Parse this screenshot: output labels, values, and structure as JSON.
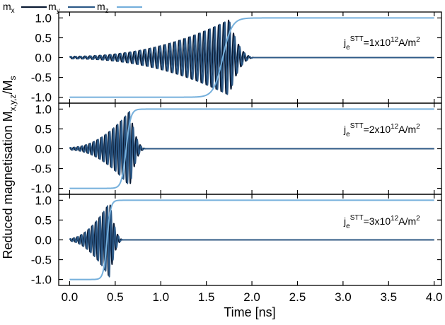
{
  "chart_data": {
    "type": "line",
    "xlabel": "Time [ns]",
    "ylabel_main": "Reduced magnetisation M",
    "ylabel_sub": "x,y,z",
    "ylabel_tail": "/M",
    "ylabel_tail_sub": "s",
    "xlim": [
      -0.12,
      4.08
    ],
    "ylim": [
      -1.15,
      1.15
    ],
    "x_ticks": [
      0.0,
      0.5,
      1.0,
      1.5,
      2.0,
      2.5,
      3.0,
      3.5,
      4.0
    ],
    "x_tick_labels": [
      "0.0",
      "0.5",
      "1.0",
      "1.5",
      "2.0",
      "2.5",
      "3.0",
      "3.5",
      "4.0"
    ],
    "y_ticks": [
      -1.0,
      -0.5,
      0.0,
      0.5,
      1.0
    ],
    "y_tick_labels": [
      "-1.0",
      "-0.5",
      "0.0",
      "0.5",
      "1.0"
    ],
    "legend": {
      "position": "top-left-outside",
      "entries": [
        {
          "base": "m",
          "sub": "x",
          "color": "#0a1a33"
        },
        {
          "base": "m",
          "sub": "y",
          "color": "#2d5a88"
        },
        {
          "base": "m",
          "sub": "z",
          "color": "#76b0dc"
        }
      ]
    },
    "panels": [
      {
        "annotation": {
          "j": "j",
          "j_sub": "e",
          "j_sup": "STT",
          "value": "=1x10",
          "exp": "12",
          "unit": "A/m",
          "unit_sup": "2"
        },
        "switch_time": 1.68,
        "switch_width": 0.05,
        "burst_start": 0.0,
        "burst_end": 1.75,
        "decay_end": 2.05,
        "period": 0.0545,
        "envelope_power": 2.2,
        "env_peak": 0.95
      },
      {
        "annotation": {
          "j": "j",
          "j_sub": "e",
          "j_sup": "STT",
          "value": "=2x10",
          "exp": "12",
          "unit": "A/m",
          "unit_sup": "2"
        },
        "switch_time": 0.62,
        "switch_width": 0.025,
        "burst_start": 0.0,
        "burst_end": 0.66,
        "decay_end": 0.85,
        "period": 0.043,
        "envelope_power": 2.0,
        "env_peak": 0.95
      },
      {
        "annotation": {
          "j": "j",
          "j_sub": "e",
          "j_sup": "STT",
          "value": "=3x10",
          "exp": "12",
          "unit": "A/m",
          "unit_sup": "2"
        },
        "switch_time": 0.41,
        "switch_width": 0.02,
        "burst_start": 0.0,
        "burst_end": 0.44,
        "decay_end": 0.6,
        "period": 0.0405,
        "envelope_power": 1.8,
        "env_peak": 0.95
      }
    ],
    "grid": false
  }
}
